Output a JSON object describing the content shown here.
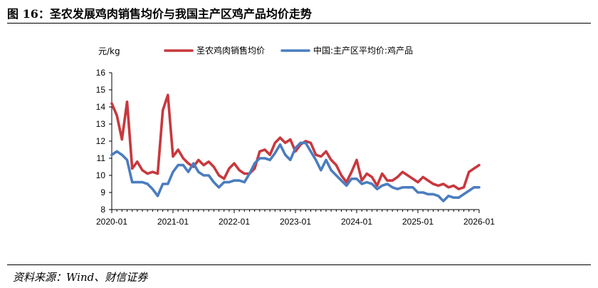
{
  "figure": {
    "title": "图 16：圣农发展鸡肉销售均价与我国主产区鸡产品均价走势",
    "source": "资料来源：Wind、财信证券"
  },
  "chart_data": {
    "type": "line",
    "ylabel": "元/kg",
    "ylim": [
      8,
      16
    ],
    "yticks": [
      8,
      9,
      10,
      11,
      12,
      13,
      14,
      15,
      16
    ],
    "xlim": [
      "2020-01",
      "2026-01"
    ],
    "xticks": [
      "2020-01",
      "2021-01",
      "2022-01",
      "2023-01",
      "2024-01",
      "2025-01",
      "2026-01"
    ],
    "grid": false,
    "legend": "top",
    "series": [
      {
        "name": "圣农鸡肉销售均价",
        "color": "#c8383d",
        "points": [
          [
            "2020-01",
            14.2
          ],
          [
            "2020-02",
            13.5
          ],
          [
            "2020-03",
            12.1
          ],
          [
            "2020-04",
            14.3
          ],
          [
            "2020-05",
            10.4
          ],
          [
            "2020-06",
            10.8
          ],
          [
            "2020-07",
            10.3
          ],
          [
            "2020-08",
            10.1
          ],
          [
            "2020-09",
            10.2
          ],
          [
            "2020-10",
            10.1
          ],
          [
            "2020-11",
            13.8
          ],
          [
            "2020-12",
            14.7
          ],
          [
            "2021-01",
            11.1
          ],
          [
            "2021-02",
            11.5
          ],
          [
            "2021-03",
            11.0
          ],
          [
            "2021-04",
            10.7
          ],
          [
            "2021-05",
            10.5
          ],
          [
            "2021-06",
            10.9
          ],
          [
            "2021-07",
            10.6
          ],
          [
            "2021-08",
            10.8
          ],
          [
            "2021-09",
            10.5
          ],
          [
            "2021-10",
            10.0
          ],
          [
            "2021-11",
            9.8
          ],
          [
            "2021-12",
            10.4
          ],
          [
            "2022-01",
            10.7
          ],
          [
            "2022-02",
            10.3
          ],
          [
            "2022-03",
            10.1
          ],
          [
            "2022-04",
            10.1
          ],
          [
            "2022-05",
            10.4
          ],
          [
            "2022-06",
            11.4
          ],
          [
            "2022-07",
            11.5
          ],
          [
            "2022-08",
            11.2
          ],
          [
            "2022-09",
            11.9
          ],
          [
            "2022-10",
            12.2
          ],
          [
            "2022-11",
            11.9
          ],
          [
            "2022-12",
            12.1
          ],
          [
            "2023-01",
            11.4
          ],
          [
            "2023-02",
            11.8
          ],
          [
            "2023-03",
            12.0
          ],
          [
            "2023-04",
            11.9
          ],
          [
            "2023-05",
            11.2
          ],
          [
            "2023-06",
            11.1
          ],
          [
            "2023-07",
            11.4
          ],
          [
            "2023-08",
            10.9
          ],
          [
            "2023-09",
            10.6
          ],
          [
            "2023-10",
            10.0
          ],
          [
            "2023-11",
            9.6
          ],
          [
            "2023-12",
            10.2
          ],
          [
            "2024-01",
            10.9
          ],
          [
            "2024-02",
            9.7
          ],
          [
            "2024-03",
            10.1
          ],
          [
            "2024-04",
            9.9
          ],
          [
            "2024-05",
            9.4
          ],
          [
            "2024-06",
            10.1
          ],
          [
            "2024-07",
            9.7
          ],
          [
            "2024-08",
            9.7
          ],
          [
            "2024-09",
            9.9
          ],
          [
            "2024-10",
            10.2
          ],
          [
            "2024-11",
            10.0
          ],
          [
            "2024-12",
            9.8
          ],
          [
            "2025-01",
            9.6
          ],
          [
            "2025-02",
            9.9
          ],
          [
            "2025-03",
            9.7
          ],
          [
            "2025-04",
            9.5
          ],
          [
            "2025-05",
            9.4
          ],
          [
            "2025-06",
            9.5
          ],
          [
            "2025-07",
            9.3
          ],
          [
            "2025-08",
            9.4
          ],
          [
            "2025-09",
            9.2
          ],
          [
            "2025-10",
            9.3
          ],
          [
            "2025-11",
            10.2
          ],
          [
            "2025-12",
            10.4
          ],
          [
            "2026-01",
            10.6
          ]
        ]
      },
      {
        "name": "中国:主产区平均价:鸡产品",
        "color": "#4a7dc0",
        "points": [
          [
            "2020-01",
            11.2
          ],
          [
            "2020-02",
            11.4
          ],
          [
            "2020-03",
            11.2
          ],
          [
            "2020-04",
            10.9
          ],
          [
            "2020-05",
            9.6
          ],
          [
            "2020-06",
            9.6
          ],
          [
            "2020-07",
            9.6
          ],
          [
            "2020-08",
            9.5
          ],
          [
            "2020-09",
            9.2
          ],
          [
            "2020-10",
            8.8
          ],
          [
            "2020-11",
            9.5
          ],
          [
            "2020-12",
            9.5
          ],
          [
            "2021-01",
            10.2
          ],
          [
            "2021-02",
            10.6
          ],
          [
            "2021-03",
            10.6
          ],
          [
            "2021-04",
            10.2
          ],
          [
            "2021-05",
            10.7
          ],
          [
            "2021-06",
            10.2
          ],
          [
            "2021-07",
            10.0
          ],
          [
            "2021-08",
            10.0
          ],
          [
            "2021-09",
            9.6
          ],
          [
            "2021-10",
            9.3
          ],
          [
            "2021-11",
            9.6
          ],
          [
            "2021-12",
            9.6
          ],
          [
            "2022-01",
            9.7
          ],
          [
            "2022-02",
            9.7
          ],
          [
            "2022-03",
            9.6
          ],
          [
            "2022-04",
            10.1
          ],
          [
            "2022-05",
            10.7
          ],
          [
            "2022-06",
            11.0
          ],
          [
            "2022-07",
            11.0
          ],
          [
            "2022-08",
            10.9
          ],
          [
            "2022-09",
            11.3
          ],
          [
            "2022-10",
            11.8
          ],
          [
            "2022-11",
            11.2
          ],
          [
            "2022-12",
            10.9
          ],
          [
            "2023-01",
            11.6
          ],
          [
            "2023-02",
            11.9
          ],
          [
            "2023-03",
            11.9
          ],
          [
            "2023-04",
            11.4
          ],
          [
            "2023-05",
            10.9
          ],
          [
            "2023-06",
            10.3
          ],
          [
            "2023-07",
            10.9
          ],
          [
            "2023-08",
            10.3
          ],
          [
            "2023-09",
            10.0
          ],
          [
            "2023-10",
            9.7
          ],
          [
            "2023-11",
            9.4
          ],
          [
            "2023-12",
            9.8
          ],
          [
            "2024-01",
            9.8
          ],
          [
            "2024-02",
            9.5
          ],
          [
            "2024-03",
            9.6
          ],
          [
            "2024-04",
            9.5
          ],
          [
            "2024-05",
            9.2
          ],
          [
            "2024-06",
            9.4
          ],
          [
            "2024-07",
            9.5
          ],
          [
            "2024-08",
            9.3
          ],
          [
            "2024-09",
            9.2
          ],
          [
            "2024-10",
            9.3
          ],
          [
            "2024-11",
            9.3
          ],
          [
            "2024-12",
            9.3
          ],
          [
            "2025-01",
            9.0
          ],
          [
            "2025-02",
            9.0
          ],
          [
            "2025-03",
            8.9
          ],
          [
            "2025-04",
            8.9
          ],
          [
            "2025-05",
            8.8
          ],
          [
            "2025-06",
            8.5
          ],
          [
            "2025-07",
            8.8
          ],
          [
            "2025-08",
            8.7
          ],
          [
            "2025-09",
            8.7
          ],
          [
            "2025-10",
            8.9
          ],
          [
            "2025-11",
            9.1
          ],
          [
            "2025-12",
            9.3
          ],
          [
            "2026-01",
            9.3
          ]
        ]
      }
    ]
  }
}
